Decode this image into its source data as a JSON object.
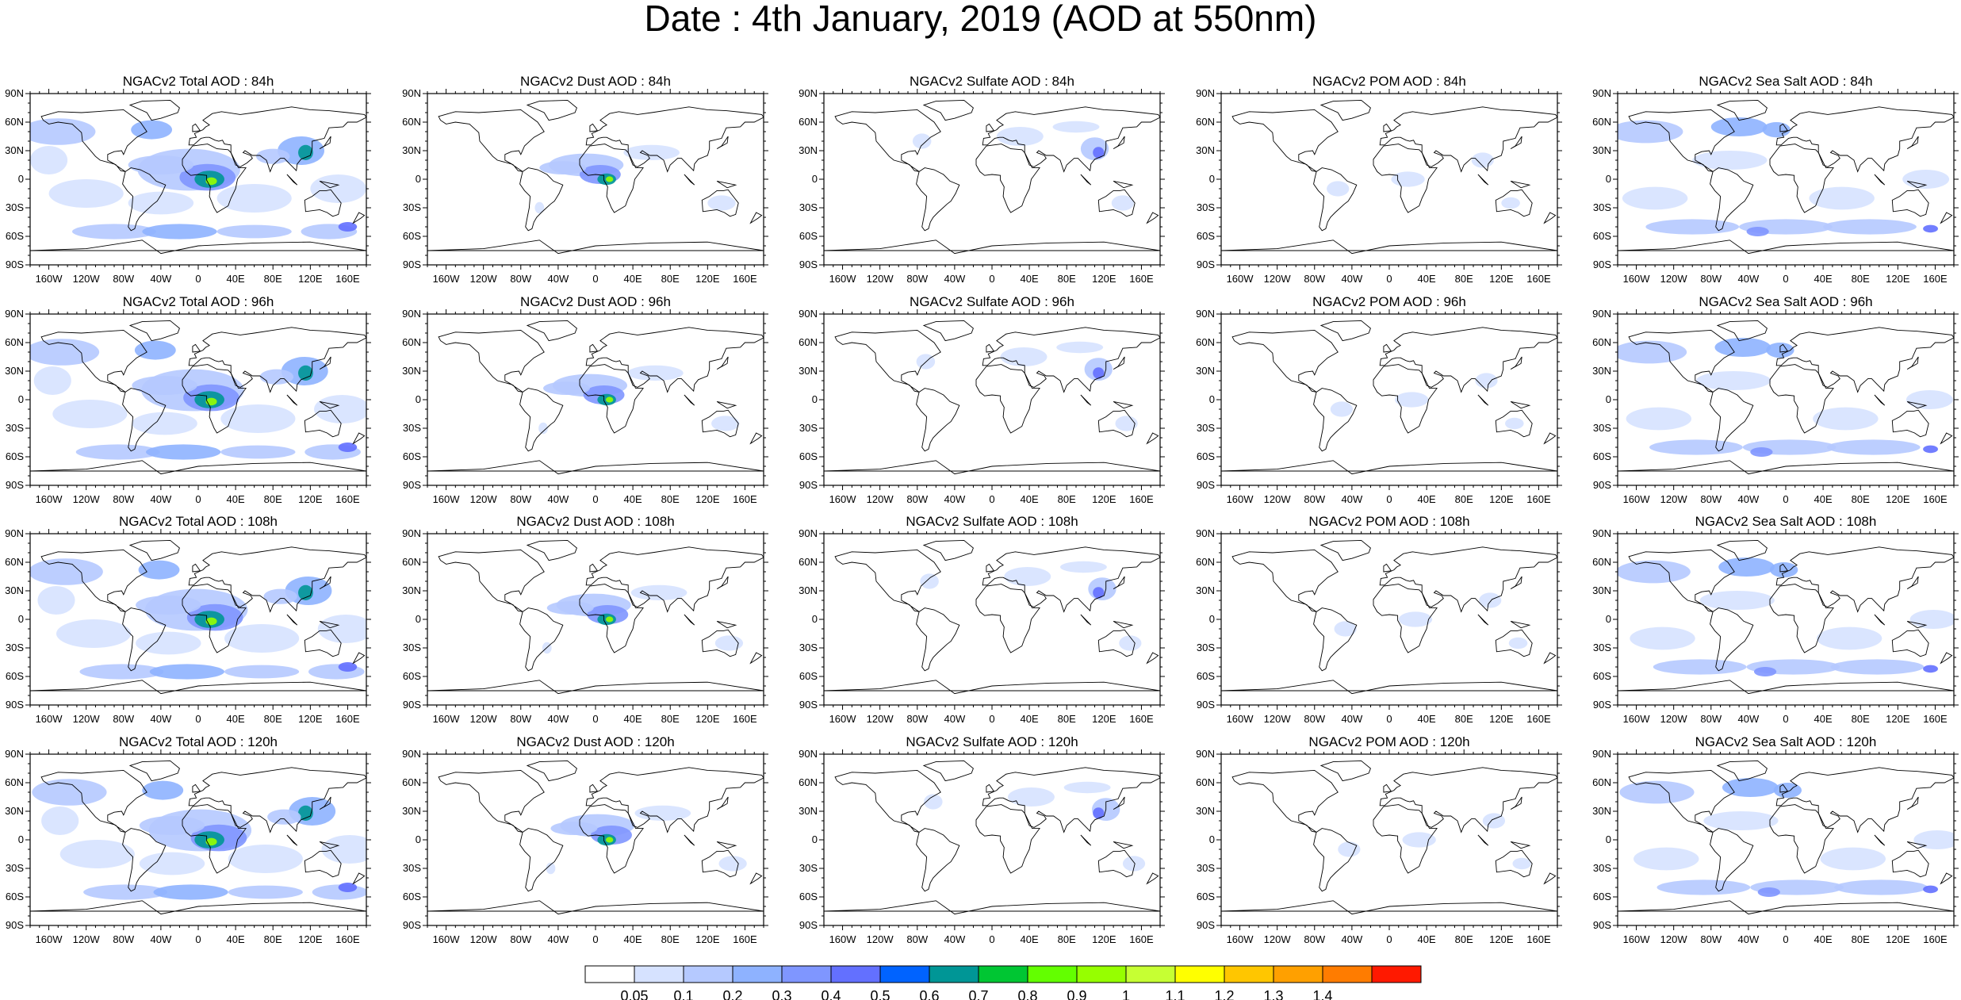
{
  "title": "Date : 4th January, 2019 (AOD at 550nm)",
  "lat_ticks": [
    "90N",
    "60N",
    "30N",
    "0",
    "30S",
    "60S",
    "90S"
  ],
  "lon_ticks": [
    "160W",
    "120W",
    "80W",
    "40W",
    "0",
    "40E",
    "80E",
    "120E",
    "160E"
  ],
  "panels": [
    [
      "NGACv2 Total AOD : 84h",
      "NGACv2 Dust AOD : 84h",
      "NGACv2 Sulfate AOD : 84h",
      "NGACv2 POM AOD : 84h",
      "NGACv2 Sea Salt AOD : 84h"
    ],
    [
      "NGACv2 Total AOD : 96h",
      "NGACv2 Dust AOD : 96h",
      "NGACv2 Sulfate AOD : 96h",
      "NGACv2 POM AOD : 96h",
      "NGACv2 Sea Salt AOD : 96h"
    ],
    [
      "NGACv2 Total AOD : 108h",
      "NGACv2 Dust AOD : 108h",
      "NGACv2 Sulfate AOD : 108h",
      "NGACv2 POM AOD : 108h",
      "NGACv2 Sea Salt AOD : 108h"
    ],
    [
      "NGACv2 Total AOD : 120h",
      "NGACv2 Dust AOD : 120h",
      "NGACv2 Sulfate AOD : 120h",
      "NGACv2 POM AOD : 120h",
      "NGACv2 Sea Salt  AOD : 120h"
    ]
  ],
  "colorbar": {
    "labels": [
      "0.05",
      "0.1",
      "0.2",
      "0.3",
      "0.4",
      "0.5",
      "0.6",
      "0.7",
      "0.8",
      "0.9",
      "1",
      "1.1",
      "1.2",
      "1.3",
      "1.4"
    ],
    "colors": [
      "#ffffff",
      "#d6e2ff",
      "#b5c9ff",
      "#8eb2ff",
      "#7f96ff",
      "#6370ff",
      "#0063ff",
      "#009696",
      "#00c633",
      "#63ff00",
      "#96ff00",
      "#c6ff33",
      "#ffff00",
      "#ffc600",
      "#ffa000",
      "#ff7c00",
      "#ff1900"
    ]
  }
}
